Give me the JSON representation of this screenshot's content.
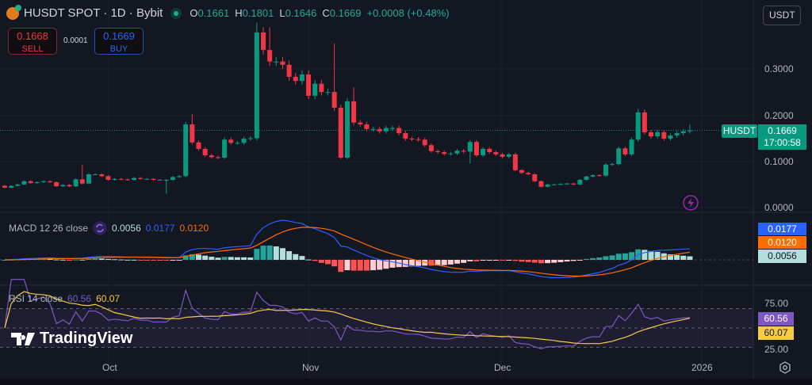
{
  "header": {
    "symbol": "HUSDT SPOT · 1D · Bybit",
    "open_label": "O",
    "open": "0.1661",
    "high_label": "H",
    "high": "0.1801",
    "low_label": "L",
    "low": "0.1646",
    "close_label": "C",
    "close": "0.1669",
    "change": "+0.0008 (+0.48%)"
  },
  "trade": {
    "sell_price": "0.1668",
    "sell_label": "SELL",
    "spread": "0.0001",
    "buy_price": "0.1669",
    "buy_label": "BUY"
  },
  "currency": "USDT",
  "price_axis": {
    "ticks": [
      "0.3000",
      "0.2000",
      "0.1000",
      "0.0000"
    ],
    "symbol_tag": "HUSDT",
    "last_price": "0.1669",
    "countdown": "17:00:58"
  },
  "macd": {
    "label": "MACD 12 26 close",
    "hist": "0.0056",
    "macd": "0.0177",
    "signal": "0.0120"
  },
  "rsi": {
    "label": "RSI 14 close",
    "rsi": "60.56",
    "ma": "60.07",
    "ticks": [
      "75.00",
      "25.00"
    ]
  },
  "time_axis": [
    "Oct",
    "Nov",
    "Dec",
    "2026"
  ],
  "brand": "TradingView",
  "colors": {
    "up": "#089981",
    "down": "#f23645",
    "macd": "#2962ff",
    "signal": "#ff6d00",
    "rsi": "#7e57c2",
    "rsi_ma": "#f7c948",
    "bg": "#131722"
  },
  "chart_data": {
    "type": "candlestick",
    "interval": "1D",
    "closes": [
      0.043,
      0.047,
      0.05,
      0.057,
      0.053,
      0.055,
      0.057,
      0.055,
      0.046,
      0.049,
      0.046,
      0.061,
      0.052,
      0.072,
      0.072,
      0.068,
      0.06,
      0.062,
      0.061,
      0.06,
      0.064,
      0.062,
      0.062,
      0.06,
      0.06,
      0.06,
      0.066,
      0.068,
      0.18,
      0.141,
      0.127,
      0.113,
      0.109,
      0.108,
      0.147,
      0.14,
      0.14,
      0.149,
      0.15,
      0.379,
      0.341,
      0.316,
      0.316,
      0.309,
      0.283,
      0.274,
      0.288,
      0.242,
      0.268,
      0.25,
      0.25,
      0.216,
      0.108,
      0.23,
      0.184,
      0.18,
      0.17,
      0.17,
      0.165,
      0.172,
      0.172,
      0.161,
      0.149,
      0.148,
      0.147,
      0.135,
      0.122,
      0.12,
      0.116,
      0.117,
      0.123,
      0.121,
      0.142,
      0.113,
      0.127,
      0.12,
      0.115,
      0.11,
      0.115,
      0.081,
      0.075,
      0.072,
      0.057,
      0.045,
      0.05,
      0.05,
      0.051,
      0.052,
      0.05,
      0.06,
      0.067,
      0.07,
      0.069,
      0.093,
      0.094,
      0.128,
      0.115,
      0.147,
      0.206,
      0.163,
      0.154,
      0.163,
      0.149,
      0.156,
      0.161,
      0.165,
      0.1669
    ],
    "wick_extremes": [
      {
        "i": 12,
        "high": 0.092
      },
      {
        "i": 25,
        "low": 0.03
      },
      {
        "i": 29,
        "high": 0.202
      },
      {
        "i": 39,
        "high": 0.4
      },
      {
        "i": 41,
        "high": 0.39
      },
      {
        "i": 51,
        "high": 0.355
      },
      {
        "i": 54,
        "high": 0.26
      },
      {
        "i": 72,
        "low": 0.095
      },
      {
        "i": 98,
        "high": 0.214
      },
      {
        "i": 106,
        "high": 0.1801
      }
    ],
    "price_range": [
      0,
      0.4
    ],
    "macd_params": [
      12,
      26,
      9
    ],
    "rsi_period": 14
  }
}
